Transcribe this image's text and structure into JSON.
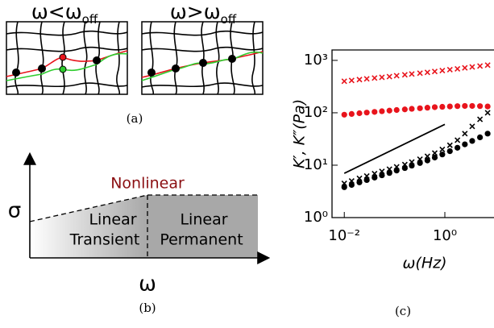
{
  "panel_a": {
    "left_label": {
      "main": "ω<ω",
      "sub": "off"
    },
    "right_label": {
      "main": "ω>ω",
      "sub": "off"
    },
    "caption": "(a)"
  },
  "panel_b": {
    "y_label": "σ",
    "x_label": "ω",
    "nonlinear": "Nonlinear",
    "left_region": [
      "Linear",
      "Transient"
    ],
    "right_region": [
      "Linear",
      "Permanent"
    ],
    "caption": "(b)"
  },
  "chart_data": {
    "type": "scatter",
    "caption": "(c)",
    "x_label": "ω(Hz)",
    "y_label": "K′, K″(Pa)",
    "xscale": "log",
    "yscale": "log",
    "xlim": [
      0.0057,
      9.5
    ],
    "ylim": [
      1,
      1580
    ],
    "xticks": [
      {
        "value": 0.01,
        "label": "10⁻²"
      },
      {
        "value": 1,
        "label": "10⁰"
      }
    ],
    "yticks": [
      {
        "value": 1,
        "label": "10⁰"
      },
      {
        "value": 10,
        "label": "10¹"
      },
      {
        "value": 100,
        "label": "10²"
      },
      {
        "value": 1000,
        "label": "10³"
      }
    ],
    "x": [
      0.01,
      0.014,
      0.02,
      0.028,
      0.04,
      0.056,
      0.079,
      0.11,
      0.16,
      0.22,
      0.32,
      0.45,
      0.63,
      0.89,
      1.26,
      1.78,
      2.5,
      3.5,
      5,
      7.1
    ],
    "series": [
      {
        "marker": "x",
        "color": "#e8141c",
        "values": [
          400,
          415,
          430,
          445,
          460,
          475,
          490,
          510,
          530,
          550,
          570,
          590,
          615,
          640,
          665,
          690,
          720,
          750,
          780,
          810
        ]
      },
      {
        "marker": "o",
        "color": "#e8141c",
        "values": [
          92,
          95,
          98,
          101,
          104,
          107,
          110,
          113,
          116,
          119,
          122,
          125,
          128,
          130,
          132,
          134,
          135,
          135,
          134,
          132
        ]
      },
      {
        "marker": "x",
        "color": "#000000",
        "values": [
          4.5,
          5,
          5.6,
          6.2,
          6.9,
          7.6,
          8.4,
          9.3,
          10.3,
          11.5,
          13,
          14.8,
          17,
          20,
          24,
          30,
          40,
          55,
          75,
          100
        ]
      },
      {
        "marker": "o",
        "color": "#000000",
        "values": [
          3.8,
          4.2,
          4.7,
          5.2,
          5.8,
          6.4,
          7.1,
          7.9,
          8.8,
          9.8,
          11,
          12.3,
          14,
          16,
          18.5,
          21.5,
          25,
          29,
          34,
          40
        ]
      },
      {
        "marker": "line",
        "color": "#000000",
        "x": [
          0.01,
          1
        ],
        "values": [
          7,
          60
        ]
      }
    ]
  }
}
